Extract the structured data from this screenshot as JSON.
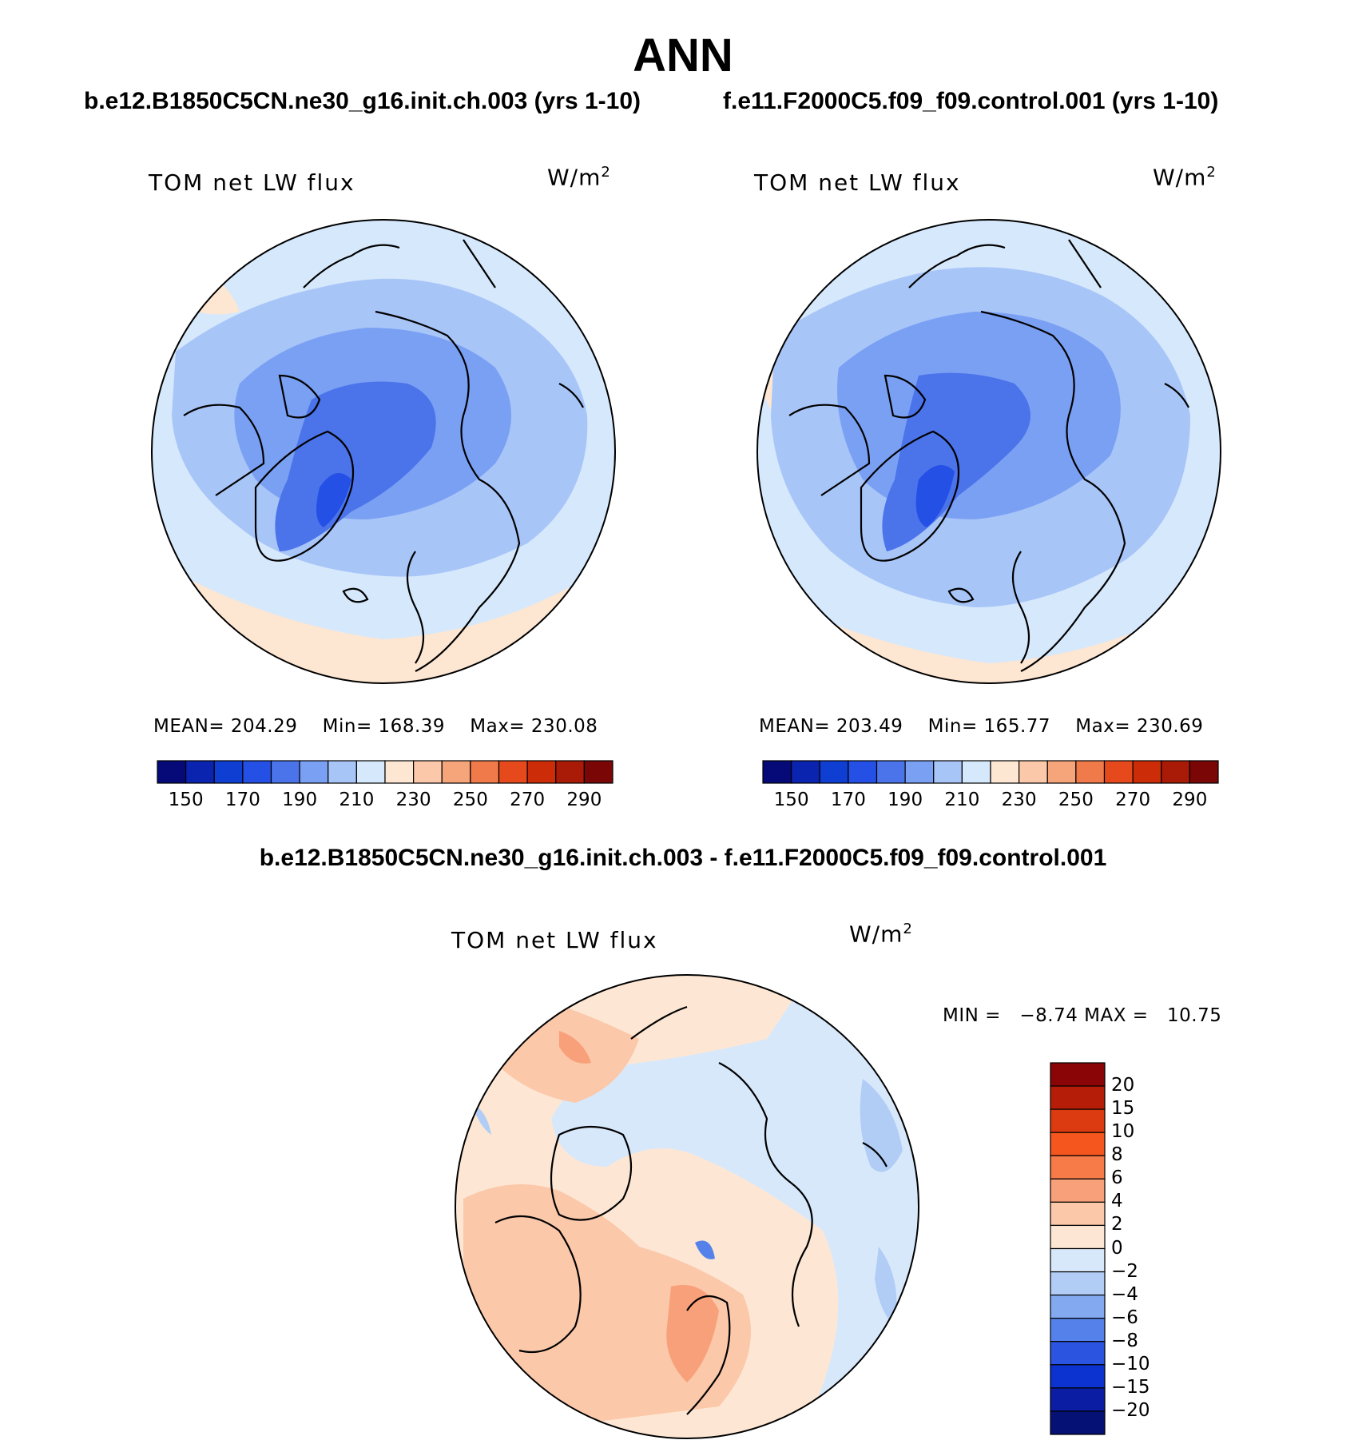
{
  "header": {
    "title": "ANN",
    "case_left": "b.e12.B1850C5CN.ne30_g16.init.ch.003 (yrs 1-10)",
    "case_right": "f.e11.F2000C5.f09_f09.control.001 (yrs 1-10)",
    "diff_title": "b.e12.B1850C5CN.ne30_g16.init.ch.003 - f.e11.F2000C5.f09_f09.control.001"
  },
  "chart_data": [
    {
      "type": "heatmap",
      "projection": "north polar stereographic",
      "title": "TOM net LW flux",
      "units": "W/m",
      "units_power": "2",
      "stats": {
        "mean_label": "MEAN=",
        "mean": "204.29",
        "min_label": "Min=",
        "min": "168.39",
        "max_label": "Max=",
        "max": "230.08"
      },
      "colorbar": {
        "orientation": "horizontal",
        "tick_labels": [
          "150",
          "170",
          "190",
          "210",
          "230",
          "250",
          "270",
          "290"
        ],
        "colors": [
          "#050a78",
          "#0b24b0",
          "#0e3fd2",
          "#2450e6",
          "#4b73ea",
          "#7aa0f3",
          "#a8c5f8",
          "#d6e8fc",
          "#fde6d2",
          "#fbc9aa",
          "#f6a47a",
          "#f07a4a",
          "#e64a1c",
          "#cc2d08",
          "#a91a07",
          "#7a0606"
        ]
      }
    },
    {
      "type": "heatmap",
      "projection": "north polar stereographic",
      "title": "TOM net LW flux",
      "units": "W/m",
      "units_power": "2",
      "stats": {
        "mean_label": "MEAN=",
        "mean": "203.49",
        "min_label": "Min=",
        "min": "165.77",
        "max_label": "Max=",
        "max": "230.69"
      },
      "colorbar": {
        "orientation": "horizontal",
        "tick_labels": [
          "150",
          "170",
          "190",
          "210",
          "230",
          "250",
          "270",
          "290"
        ],
        "colors": [
          "#050a78",
          "#0b24b0",
          "#0e3fd2",
          "#2450e6",
          "#4b73ea",
          "#7aa0f3",
          "#a8c5f8",
          "#d6e8fc",
          "#fde6d2",
          "#fbc9aa",
          "#f6a47a",
          "#f07a4a",
          "#e64a1c",
          "#cc2d08",
          "#a91a07",
          "#7a0606"
        ]
      }
    },
    {
      "type": "heatmap",
      "projection": "north polar stereographic",
      "title": "TOM net LW flux",
      "units": "W/m",
      "units_power": "2",
      "stats": {
        "min_label": "MIN =",
        "min": "−8.74",
        "max_label": "MAX =",
        "max": "10.75"
      },
      "colorbar": {
        "orientation": "vertical",
        "tick_labels": [
          "20",
          "15",
          "10",
          "8",
          "6",
          "4",
          "2",
          "0",
          "−2",
          "−4",
          "−6",
          "−8",
          "−10",
          "−15",
          "−20"
        ],
        "colors": [
          "#8a0505",
          "#b51d08",
          "#dc3a10",
          "#f5561e",
          "#f77b48",
          "#f8a07a",
          "#fbc8aa",
          "#fde7d4",
          "#d8e8fb",
          "#b1cdf6",
          "#83aaf0",
          "#5582ea",
          "#2b55e0",
          "#0c33cf",
          "#0a1da3",
          "#061175"
        ]
      }
    }
  ]
}
